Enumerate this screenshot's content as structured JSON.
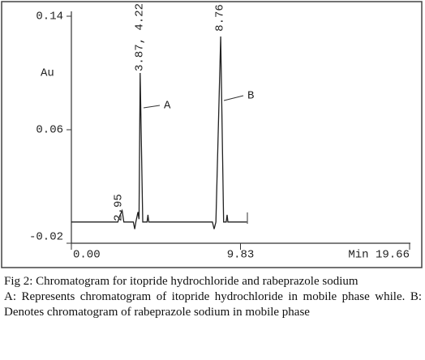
{
  "chart_data": {
    "type": "line",
    "ylabel": "Au",
    "xlim": [
      0,
      19.66
    ],
    "ylim": [
      -0.02,
      0.14
    ],
    "xticks": [
      {
        "value": 0,
        "label": "0.00"
      },
      9.83,
      {
        "value": 19.66,
        "label": "Min 19.66"
      }
    ],
    "yticks": [
      0.14,
      0.06,
      -0.02
    ],
    "series": [
      {
        "color": "#222222",
        "x": [
          0,
          2.7,
          2.8,
          2.95,
          3.05,
          3.6,
          3.68,
          3.75,
          3.87,
          3.93,
          4.0,
          4.15,
          4.4,
          4.45,
          4.5,
          8.2,
          8.3,
          8.4,
          8.68,
          8.85,
          9.0,
          9.05,
          9.1,
          10.2
        ],
        "values": [
          -0.005,
          -0.005,
          -0.001,
          0.003,
          -0.005,
          -0.005,
          -0.01,
          -0.005,
          0.002,
          -0.003,
          0.1,
          -0.005,
          -0.005,
          0.0,
          -0.005,
          -0.005,
          -0.01,
          -0.005,
          0.1257,
          -0.005,
          -0.005,
          0.0,
          -0.005,
          -0.005
        ]
      }
    ],
    "annotations": [
      "3.87, 4.22",
      "8.76",
      "2.95",
      "A",
      "B"
    ],
    "caption": [
      "Fig 2: Chromatogram for itopride hydrochloride and rabeprazole sodium",
      "A: Represents chromatogram of itopride hydrochloride in mobile phase while. B: Denotes chromatogram of rabeprazole sodium in mobile phase"
    ]
  }
}
